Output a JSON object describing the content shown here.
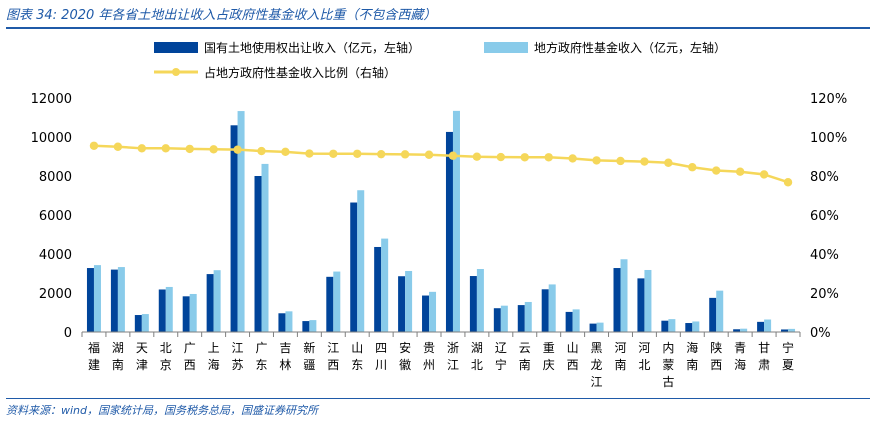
{
  "header": {
    "title": "图表 34:  2020 年各省土地出让收入占政府性基金收入比重（不包含西藏）"
  },
  "footer": {
    "source": "资料来源：wind，国家统计局，国务税务总局，国盛证券研究所"
  },
  "colors": {
    "series1": "#00449a",
    "series2": "#89cbea",
    "series3": "#f5d75a",
    "header": "#1f5aa8"
  },
  "chart_data": {
    "type": "bar",
    "categories": [
      "福建",
      "湖南",
      "天津",
      "北京",
      "广西",
      "上海",
      "江苏",
      "广东",
      "吉林",
      "新疆",
      "江西",
      "山东",
      "四川",
      "安徽",
      "贵州",
      "浙江",
      "湖北",
      "辽宁",
      "云南",
      "重庆",
      "山西",
      "黑龙江",
      "河南",
      "河北",
      "内蒙古",
      "海南",
      "陕西",
      "青海",
      "甘肃",
      "宁夏"
    ],
    "y_left": {
      "ylim": [
        0,
        12000
      ],
      "ticks": [
        "0",
        "2000",
        "4000",
        "6000",
        "8000",
        "10000",
        "12000"
      ]
    },
    "y_right": {
      "ylim": [
        0,
        120
      ],
      "ticks": [
        "0%",
        "20%",
        "40%",
        "60%",
        "80%",
        "100%",
        "120%"
      ]
    },
    "legend_position": "top",
    "series": [
      {
        "name": "国有土地使用权出让收入（亿元，左轴）",
        "type": "bar",
        "axis": "left",
        "values": [
          3280,
          3200,
          870,
          2180,
          1830,
          2970,
          10600,
          8000,
          960,
          560,
          2830,
          6640,
          4360,
          2860,
          1870,
          10260,
          2870,
          1220,
          1380,
          2190,
          1030,
          430,
          3280,
          2750,
          580,
          460,
          1750,
          140,
          520,
          130
        ]
      },
      {
        "name": "地方政府性基金收入（亿元，左轴）",
        "type": "bar",
        "axis": "left",
        "values": [
          3430,
          3330,
          920,
          2310,
          1950,
          3170,
          11330,
          8620,
          1060,
          610,
          3100,
          7270,
          4790,
          3130,
          2060,
          11340,
          3230,
          1350,
          1540,
          2440,
          1160,
          480,
          3730,
          3180,
          660,
          540,
          2120,
          170,
          640,
          160
        ]
      },
      {
        "name": "占地方政府性基金收入比例（右轴）",
        "type": "line",
        "axis": "right",
        "values": [
          95.5,
          95.0,
          94.2,
          94.2,
          93.9,
          93.7,
          93.5,
          92.8,
          92.4,
          91.5,
          91.4,
          91.4,
          91.2,
          91.1,
          90.9,
          90.4,
          89.9,
          89.7,
          89.6,
          89.6,
          89.0,
          88.0,
          87.7,
          87.4,
          86.8,
          84.5,
          82.8,
          82.2,
          80.8,
          76.8
        ]
      }
    ]
  }
}
